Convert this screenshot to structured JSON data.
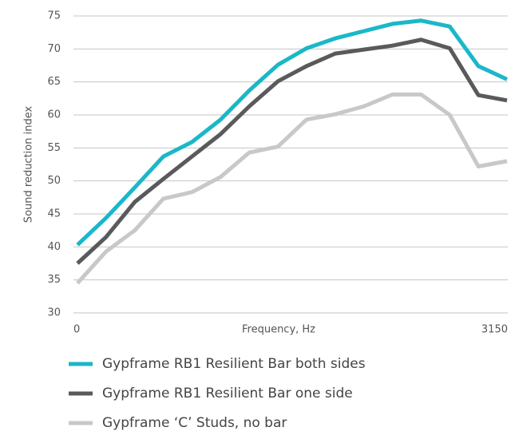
{
  "chart_data": {
    "type": "line",
    "ylabel": "Sound reduction index",
    "xlabel": "Frequency, Hz",
    "categories": [
      "0",
      null,
      null,
      null,
      null,
      null,
      null,
      null,
      null,
      null,
      null,
      null,
      null,
      null,
      null,
      "3150"
    ],
    "ylim": [
      30,
      75
    ],
    "yticks": [
      30,
      35,
      40,
      45,
      50,
      55,
      60,
      65,
      70,
      75
    ],
    "grid": true,
    "series": [
      {
        "name": "Gypframe RB1 Resilient Bar both sides",
        "color": "#1ab7c9",
        "values": [
          40.3,
          44.4,
          49,
          53.7,
          55.9,
          59.3,
          63.7,
          67.6,
          70.1,
          71.6,
          72.7,
          73.8,
          74.3,
          73.4,
          67.4,
          65.4
        ]
      },
      {
        "name": "Gypframe RB1 Resilient Bar one side",
        "color": "#5a5a5c",
        "values": [
          37.5,
          41.5,
          46.8,
          50.3,
          53.7,
          57.1,
          61.3,
          65.1,
          67.4,
          69.3,
          69.9,
          70.5,
          71.4,
          70.1,
          63,
          62.2
        ]
      },
      {
        "name": "Gypframe ‘C’ Studs, no bar",
        "color": "#c8c8c8",
        "values": [
          34.5,
          39.3,
          42.5,
          47.3,
          48.3,
          50.6,
          54.3,
          55.2,
          59.3,
          60.1,
          61.3,
          63.1,
          63.1,
          60,
          52.2,
          53
        ]
      }
    ]
  }
}
